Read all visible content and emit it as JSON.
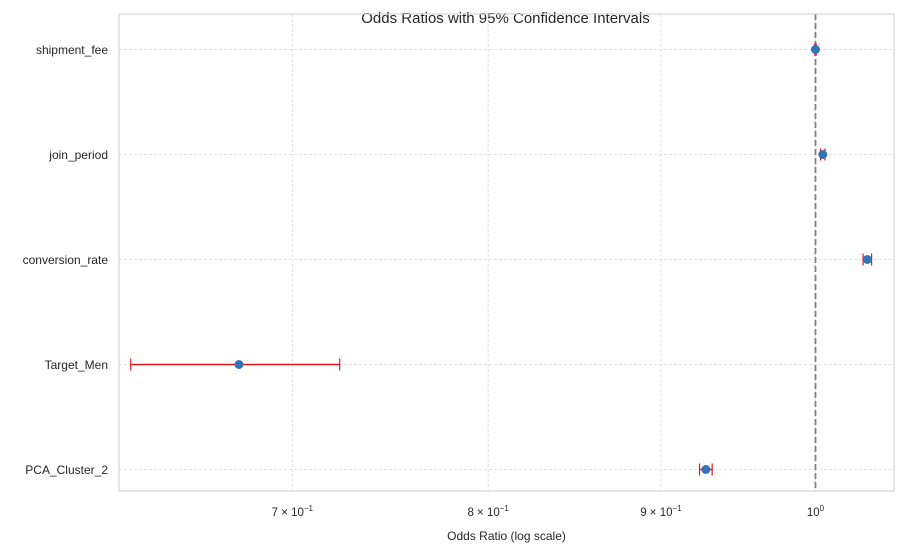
{
  "chart_data": {
    "type": "scatter",
    "title": "Odds Ratios with 95% Confidence Intervals",
    "xlabel": "Odds Ratio (log scale)",
    "ylabel": "",
    "x_scale": "log",
    "xlim": [
      0.622,
      1.055
    ],
    "grid": true,
    "reference_line": {
      "x": 1.0,
      "style": "dashed",
      "color": "#808080"
    },
    "x_ticks": [
      {
        "value": 0.7,
        "base": "7 × 10",
        "exp": "−1"
      },
      {
        "value": 0.8,
        "base": "8 × 10",
        "exp": "−1"
      },
      {
        "value": 0.9,
        "base": "9 × 10",
        "exp": "−1"
      },
      {
        "value": 1.0,
        "base": "10",
        "exp": "0"
      }
    ],
    "categories": [
      "shipment_fee",
      "join_period",
      "conversion_rate",
      "Target_Men",
      "PCA_Cluster_2"
    ],
    "odds_ratios": [
      1.0,
      1.005,
      1.036,
      0.675,
      0.928
    ],
    "ci_lower": [
      0.9995,
      1.0035,
      1.033,
      0.627,
      0.924
    ],
    "ci_upper": [
      1.0005,
      1.0065,
      1.039,
      0.723,
      0.932
    ],
    "colors": {
      "point": "#3274b5",
      "errorbar": "#e3191c",
      "grid": "#d9d9d9",
      "axes": "#cccccc"
    }
  }
}
